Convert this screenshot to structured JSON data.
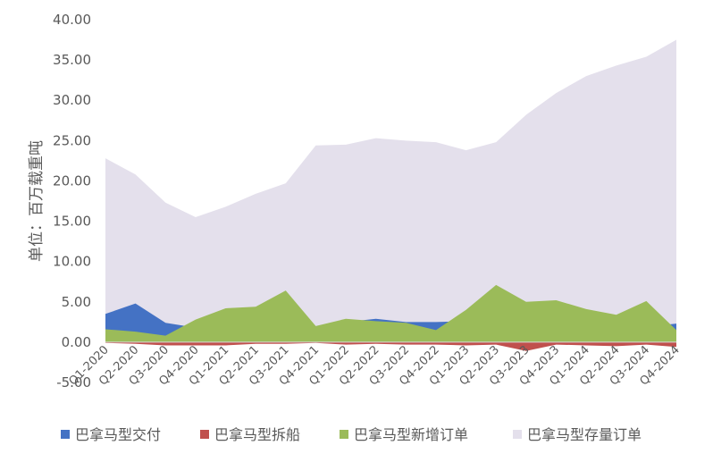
{
  "chart_data": {
    "type": "area",
    "title": "",
    "xlabel": "",
    "ylabel": "单位：百万载重吨",
    "ylim": [
      -5,
      40
    ],
    "yticks": [
      "-5.00",
      "0.00",
      "5.00",
      "10.00",
      "15.00",
      "20.00",
      "25.00",
      "30.00",
      "35.00",
      "40.00"
    ],
    "ytick_values": [
      -5,
      0,
      5,
      10,
      15,
      20,
      25,
      30,
      35,
      40
    ],
    "grid": false,
    "legend_position": "bottom",
    "categories": [
      "Q1-2020",
      "Q2-2020",
      "Q3-2020",
      "Q4-2020",
      "Q1-2021",
      "Q2-2021",
      "Q3-2021",
      "Q4-2021",
      "Q1-2022",
      "Q2-2022",
      "Q3-2022",
      "Q4-2022",
      "Q1-2023",
      "Q2-2023",
      "Q3-2023",
      "Q4-2023",
      "Q1-2024",
      "Q2-2024",
      "Q3-2024",
      "Q4-2024"
    ],
    "series": [
      {
        "name": "巴拿马型交付",
        "color": "#4472c4",
        "values": [
          3.5,
          4.8,
          2.4,
          1.8,
          1.3,
          1.2,
          1.0,
          1.5,
          2.5,
          2.9,
          2.5,
          2.5,
          2.6,
          2.8,
          2.3,
          2.0,
          1.8,
          1.9,
          1.9,
          2.3
        ]
      },
      {
        "name": "巴拿马型拆船",
        "color": "#c0504d",
        "values": [
          -0.1,
          -0.2,
          -0.4,
          -0.4,
          -0.4,
          -0.2,
          -0.2,
          -0.1,
          -0.3,
          -0.2,
          -0.3,
          -0.3,
          -0.4,
          -0.3,
          -1.1,
          -0.3,
          -0.4,
          -0.5,
          -0.3,
          -0.6
        ]
      },
      {
        "name": "巴拿马型新增订单",
        "color": "#9bbb59",
        "values": [
          1.6,
          1.3,
          0.8,
          2.8,
          4.2,
          4.4,
          6.4,
          2.0,
          2.9,
          2.6,
          2.4,
          1.5,
          4.0,
          7.1,
          5.0,
          5.2,
          4.1,
          3.4,
          5.1,
          1.5
        ]
      },
      {
        "name": "巴拿马型存量订单",
        "color": "#e4e0ec",
        "values": [
          22.8,
          20.8,
          17.3,
          15.5,
          16.8,
          18.4,
          19.7,
          24.4,
          24.5,
          25.3,
          25.0,
          24.8,
          23.8,
          24.8,
          28.2,
          30.9,
          33.0,
          34.3,
          35.4,
          37.5
        ]
      }
    ],
    "draw_order": [
      3,
      0,
      1,
      2
    ]
  }
}
